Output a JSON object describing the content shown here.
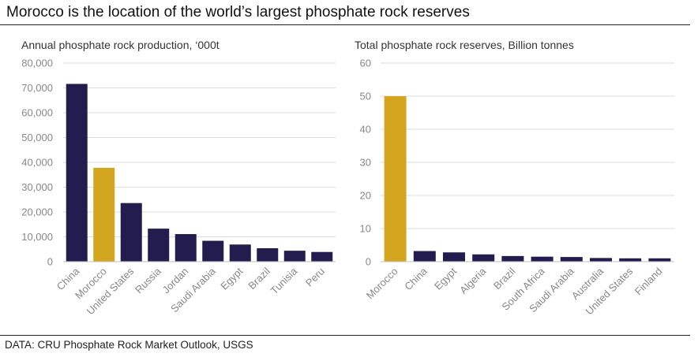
{
  "title": "Morocco is the location of the world’s largest phosphate rock reserves",
  "source": "DATA: CRU Phosphate Rock Market Outlook, USGS",
  "colors": {
    "navy": "#231c4f",
    "gold": "#d4a51e",
    "grid": "#dedede",
    "axis": "#bfbfbf"
  },
  "chart_data": [
    {
      "type": "bar",
      "title": "Annual phosphate rock production, ‘000t",
      "categories": [
        "China",
        "Morocco",
        "United States",
        "Russia",
        "Jordan",
        "Saudi Arabia",
        "Egypt",
        "Brazil",
        "Tunisia",
        "Peru"
      ],
      "values": [
        71600,
        37800,
        23600,
        13300,
        11100,
        8400,
        6900,
        5400,
        4400,
        3900
      ],
      "highlight": [
        "Morocco"
      ],
      "ylim": [
        0,
        80000
      ],
      "yticks": [
        0,
        10000,
        20000,
        30000,
        40000,
        50000,
        60000,
        70000,
        80000
      ],
      "ytick_labels": [
        "0",
        "10,000",
        "20,000",
        "30,000",
        "40,000",
        "50,000",
        "60,000",
        "70,000",
        "80,000"
      ],
      "grid": true
    },
    {
      "type": "bar",
      "title": "Total phosphate rock reserves, Billion tonnes",
      "categories": [
        "Morocco",
        "China",
        "Egypt",
        "Algeria",
        "Brazil",
        "South Africa",
        "Saudi Arabia",
        "Australia",
        "United States",
        "Finland"
      ],
      "values": [
        50,
        3.2,
        2.8,
        2.2,
        1.7,
        1.5,
        1.4,
        1.1,
        1.0,
        1.0
      ],
      "highlight": [
        "Morocco"
      ],
      "ylim": [
        0,
        60
      ],
      "yticks": [
        0,
        10,
        20,
        30,
        40,
        50,
        60
      ],
      "ytick_labels": [
        "0",
        "10",
        "20",
        "30",
        "40",
        "50",
        "60"
      ],
      "grid": true
    }
  ]
}
